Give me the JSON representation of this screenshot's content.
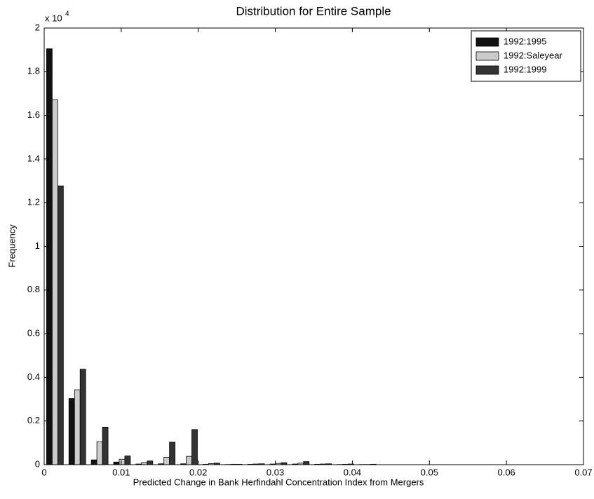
{
  "chart_data": {
    "type": "bar",
    "title": "Distribution for Entire Sample",
    "x_label": "Predicted Change in Bank Herfindahl Concentration Index from Mergers",
    "y_label": "Frequency",
    "y_multiplier": "x 10",
    "y_multiplier_exponent": "4",
    "x": [
      0.0014,
      0.0043,
      0.0072,
      0.0101,
      0.013,
      0.0159,
      0.0188,
      0.0217,
      0.0246,
      0.0275,
      0.0304,
      0.0333,
      0.0362,
      0.0391,
      0.042
    ],
    "series": [
      {
        "name": "1992:1995",
        "color": "#111111",
        "values": [
          1.905,
          0.303,
          0.022,
          0.012,
          0.003,
          0.004,
          0.004,
          0.002,
          0.001,
          0.002,
          0.003,
          0.003,
          0.002,
          0.001,
          0.001
        ]
      },
      {
        "name": "1992:Saleyear",
        "color": "#cccccc",
        "values": [
          1.672,
          0.343,
          0.105,
          0.025,
          0.01,
          0.034,
          0.038,
          0.005,
          0.002,
          0.003,
          0.006,
          0.007,
          0.003,
          0.002,
          0.001
        ]
      },
      {
        "name": "1992:1999",
        "color": "#333333",
        "values": [
          1.277,
          0.437,
          0.172,
          0.04,
          0.017,
          0.103,
          0.161,
          0.007,
          0.002,
          0.004,
          0.009,
          0.014,
          0.004,
          0.003,
          0.002
        ]
      }
    ],
    "xlim": [
      0,
      0.07
    ],
    "xticks": [
      0,
      0.01,
      0.02,
      0.03,
      0.04,
      0.05,
      0.06,
      0.07
    ],
    "ylim": [
      0,
      2
    ],
    "yticks": [
      0,
      0.2,
      0.4,
      0.6,
      0.8,
      1,
      1.2,
      1.4,
      1.6,
      1.8,
      2
    ],
    "legend": "top-right",
    "grid": false
  }
}
